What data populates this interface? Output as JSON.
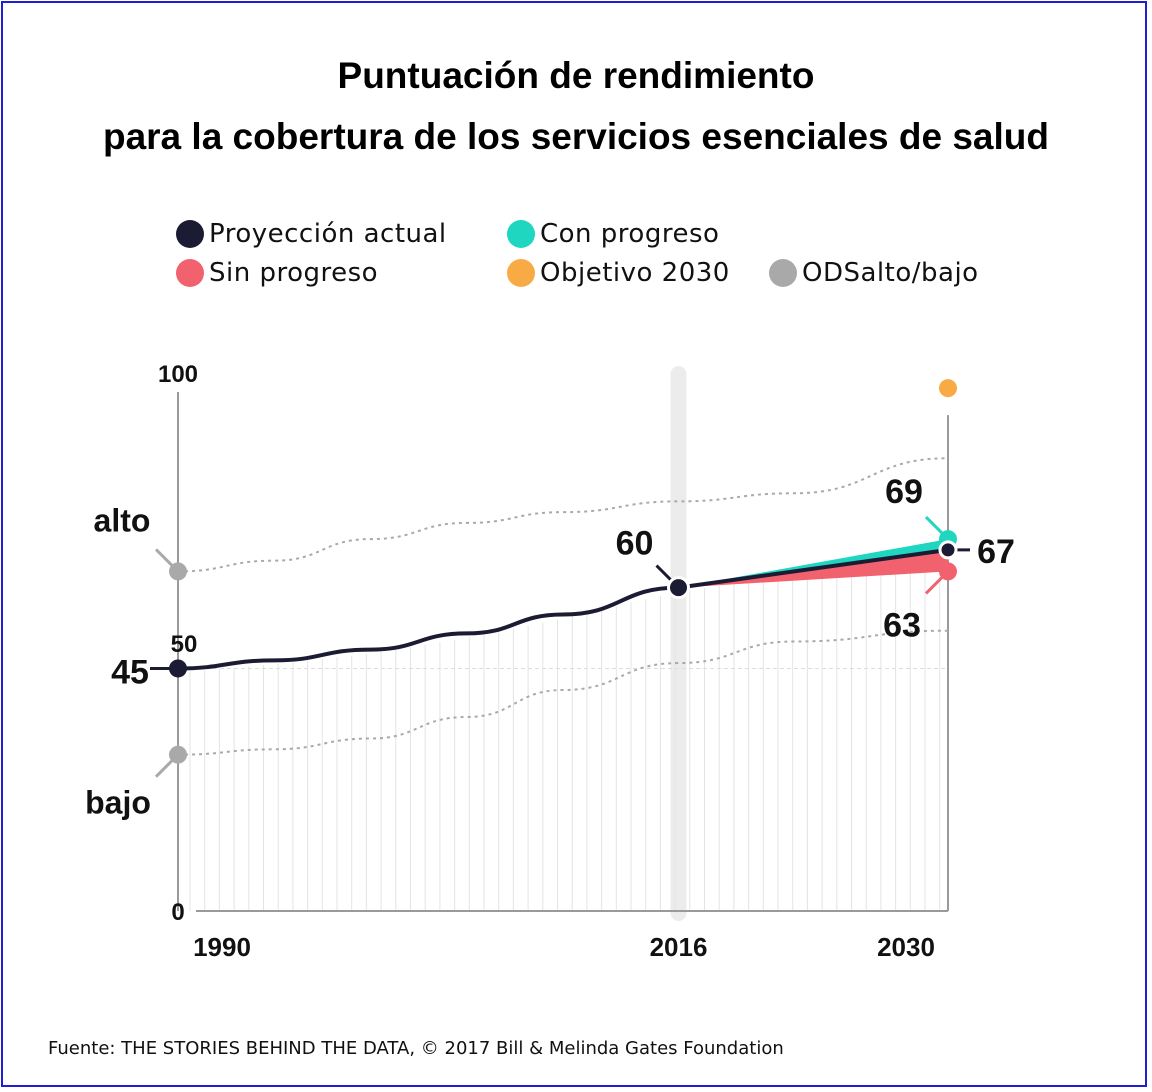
{
  "title_line1": "Puntuación de rendimiento",
  "title_line2": "para la cobertura de los servicios esenciales de salud",
  "legend": [
    {
      "label": "Proyección actual",
      "color": "#1b1b33"
    },
    {
      "label": "Con progreso",
      "color": "#1fd6c0"
    },
    {
      "label": "Sin progreso",
      "color": "#f2626e"
    },
    {
      "label": "Objetivo 2030",
      "color": "#f8aa45"
    },
    {
      "label": "ODSalto/bajo",
      "color": "#a9a9a9"
    }
  ],
  "source": "Fuente: THE STORIES BEHIND THE DATA, © 2017 Bill & Melinda Gates Foundation",
  "chart_data": {
    "type": "line",
    "xlim": [
      1990,
      2030
    ],
    "ylim": [
      0,
      100
    ],
    "x_ticks": [
      "1990",
      "2016",
      "2030"
    ],
    "y_ticks": [
      "0",
      "50",
      "100"
    ],
    "labels": {
      "alto": "alto",
      "bajo": "bajo"
    },
    "series": [
      {
        "name": "Proyección actual",
        "color": "#1b1b33",
        "points": [
          [
            1990,
            45
          ],
          [
            1995,
            46.5
          ],
          [
            2000,
            48.5
          ],
          [
            2005,
            51.5
          ],
          [
            2010,
            55
          ],
          [
            2016,
            60
          ],
          [
            2030,
            67
          ]
        ]
      },
      {
        "name": "Con progreso",
        "color": "#1fd6c0",
        "points": [
          [
            2016,
            60
          ],
          [
            2030,
            69
          ]
        ]
      },
      {
        "name": "Sin progreso",
        "color": "#f2626e",
        "points": [
          [
            2016,
            60
          ],
          [
            2030,
            63
          ]
        ]
      },
      {
        "name": "ODSalto/bajo",
        "color": "#a9a9a9",
        "bound": "alto",
        "points": [
          [
            1990,
            63
          ],
          [
            1995,
            65
          ],
          [
            2000,
            69
          ],
          [
            2005,
            72
          ],
          [
            2010,
            74
          ],
          [
            2016,
            76
          ],
          [
            2022,
            77.5
          ],
          [
            2030,
            84
          ]
        ]
      },
      {
        "name": "ODSalto/bajo",
        "color": "#a9a9a9",
        "bound": "bajo",
        "points": [
          [
            1990,
            29
          ],
          [
            1995,
            30
          ],
          [
            2000,
            32
          ],
          [
            2005,
            36
          ],
          [
            2010,
            41
          ],
          [
            2016,
            46
          ],
          [
            2022,
            50
          ],
          [
            2030,
            52
          ]
        ]
      }
    ],
    "objective_2030": 97,
    "value_labels": [
      {
        "text": "45",
        "x": 1990,
        "y": 45
      },
      {
        "text": "60",
        "x": 2016,
        "y": 60
      },
      {
        "text": "69",
        "x": 2030,
        "y": 69
      },
      {
        "text": "67",
        "x": 2030,
        "y": 67
      },
      {
        "text": "63",
        "x": 2030,
        "y": 63
      }
    ]
  }
}
